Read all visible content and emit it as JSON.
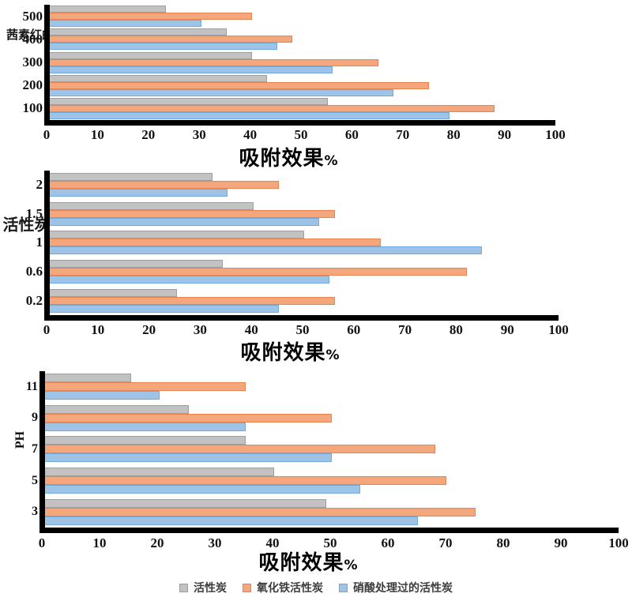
{
  "colors": {
    "gray": {
      "fill": "#C2C2C2",
      "border": "#9E9E9E"
    },
    "orange": {
      "fill": "#F4A77C",
      "border": "#E8824E"
    },
    "blue": {
      "fill": "#9DC3E6",
      "border": "#73A9D8"
    },
    "axis": "#000000"
  },
  "legend": {
    "items": [
      {
        "label": "活性炭",
        "color": "gray"
      },
      {
        "label": "氧化铁活性炭",
        "color": "orange"
      },
      {
        "label": "硝酸处理过的活性炭",
        "color": "blue"
      }
    ]
  },
  "chart_data": [
    {
      "type": "bar",
      "orientation": "horizontal",
      "title": "",
      "xlabel": "吸附效果%",
      "ylabel": "茜素红的浓度",
      "xlim": [
        0,
        100
      ],
      "x_ticks": [
        0,
        10,
        20,
        30,
        40,
        50,
        60,
        70,
        80,
        90,
        100
      ],
      "grid": false,
      "legend_position": "none",
      "categories": [
        "500",
        "400",
        "300",
        "200",
        "100"
      ],
      "series": [
        {
          "name": "活性炭",
          "color": "gray",
          "values": [
            23,
            35,
            40,
            43,
            55
          ]
        },
        {
          "name": "氧化铁活性炭",
          "color": "orange",
          "values": [
            40,
            48,
            65,
            75,
            88
          ]
        },
        {
          "name": "硝酸处理过的活性炭",
          "color": "blue",
          "values": [
            30,
            45,
            56,
            68,
            79
          ]
        }
      ]
    },
    {
      "type": "bar",
      "orientation": "horizontal",
      "title": "",
      "xlabel": "吸附效果%",
      "ylabel": "活性炭用量",
      "xlim": [
        0,
        100
      ],
      "x_ticks": [
        0,
        10,
        20,
        30,
        40,
        50,
        60,
        70,
        80,
        90,
        100
      ],
      "grid": false,
      "legend_position": "none",
      "categories": [
        "2",
        "1.5",
        "1",
        "0.6",
        "0.2"
      ],
      "series": [
        {
          "name": "活性炭",
          "color": "gray",
          "values": [
            32,
            40,
            50,
            34,
            25
          ]
        },
        {
          "name": "氧化铁活性炭",
          "color": "orange",
          "values": [
            45,
            56,
            65,
            82,
            56
          ]
        },
        {
          "name": "硝酸处理过的活性炭",
          "color": "blue",
          "values": [
            35,
            53,
            85,
            55,
            45
          ]
        }
      ]
    },
    {
      "type": "bar",
      "orientation": "horizontal",
      "title": "",
      "xlabel": "吸附效果%",
      "ylabel": "PH",
      "xlim": [
        0,
        100
      ],
      "x_ticks": [
        0,
        10,
        20,
        30,
        40,
        50,
        60,
        70,
        80,
        90,
        100
      ],
      "grid": false,
      "legend_position": "none",
      "categories": [
        "11",
        "9",
        "7",
        "5",
        "3"
      ],
      "series": [
        {
          "name": "活性炭",
          "color": "gray",
          "values": [
            15,
            25,
            35,
            40,
            49
          ]
        },
        {
          "name": "氧化铁活性炭",
          "color": "orange",
          "values": [
            35,
            50,
            68,
            70,
            75
          ]
        },
        {
          "name": "硝酸处理过的活性炭",
          "color": "blue",
          "values": [
            20,
            35,
            50,
            55,
            65
          ]
        }
      ]
    }
  ]
}
